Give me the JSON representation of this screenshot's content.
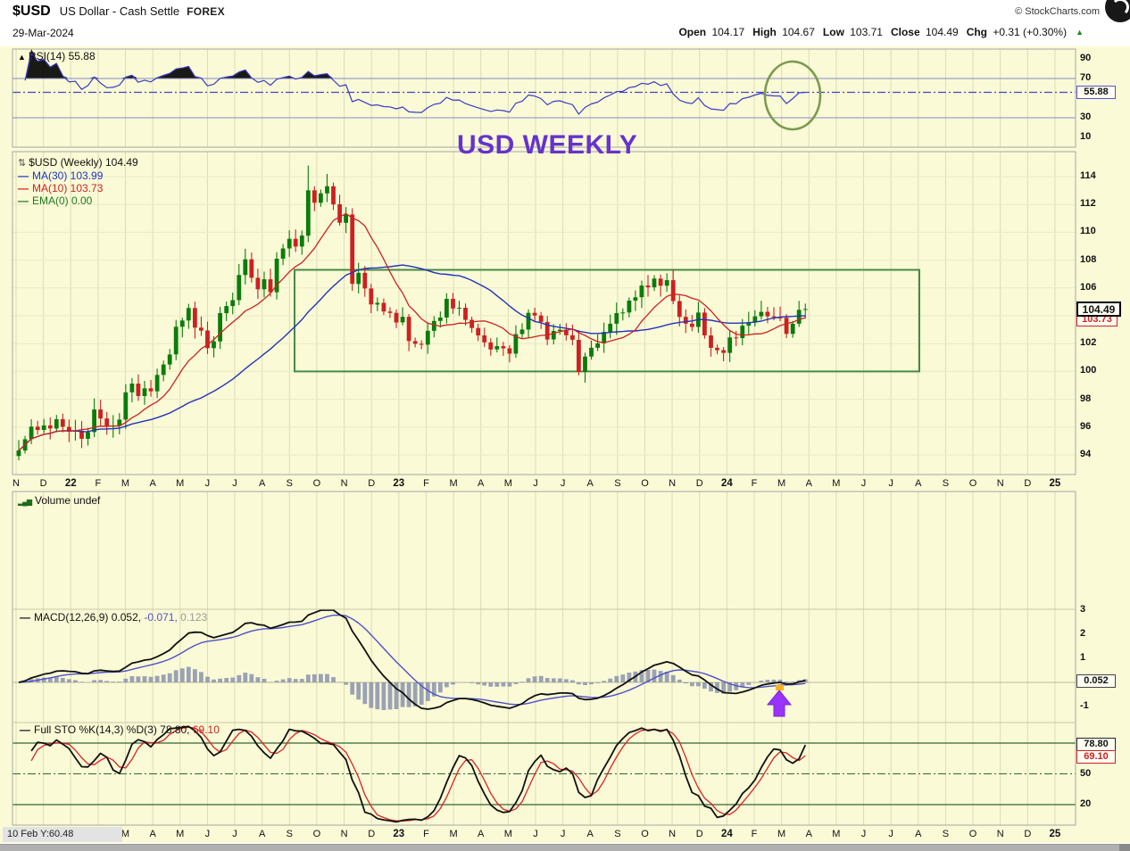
{
  "header": {
    "symbol": "$USD",
    "name": "US Dollar - Cash Settle",
    "exchange": "FOREX",
    "date": "29-Mar-2024",
    "copyright": "© StockCharts.com",
    "quote": [
      {
        "label": "Open",
        "value": "104.17"
      },
      {
        "label": "High",
        "value": "104.67"
      },
      {
        "label": "Low",
        "value": "103.71"
      },
      {
        "label": "Close",
        "value": "104.49"
      },
      {
        "label": "Chg",
        "value": "+0.31 (+0.30%)"
      }
    ],
    "chg_direction": "up"
  },
  "annotations": {
    "title": "USD WEEKLY",
    "bottom_left": "10 Feb Y:60.48"
  },
  "panels": {
    "rsi": {
      "legend": "RSI(14) 55.88",
      "value_box": "55.88",
      "scale": [
        90,
        70,
        30,
        10
      ]
    },
    "price": {
      "legend_main": "$USD (Weekly) 104.49",
      "legend_ma30": "MA(30) 103.99",
      "legend_ma10": "MA(10) 103.73",
      "legend_ema": "EMA(0) 0.00",
      "value_box": "104.49",
      "value_box_ma10": "103.73",
      "scale": [
        114,
        112,
        110,
        108,
        106,
        104,
        102,
        100,
        98,
        96,
        94
      ]
    },
    "volume": {
      "legend": "Volume undef"
    },
    "macd": {
      "legend_label": "MACD(12,26,9)",
      "v1": "0.052,",
      "v2": "-0.071,",
      "v3": "0.123",
      "value_box": "0.052",
      "scale": [
        3,
        2,
        1,
        -1
      ]
    },
    "sto": {
      "legend_label": "Full STO %K(14,3) %D(3)",
      "v1": "78.80,",
      "v2": "69.10",
      "box_k": "78.80",
      "box_d": "69.10",
      "scale": [
        50,
        20
      ]
    }
  },
  "axis": {
    "months": [
      "N",
      "D",
      "22",
      "F",
      "M",
      "A",
      "M",
      "J",
      "J",
      "A",
      "S",
      "O",
      "N",
      "D",
      "23",
      "F",
      "M",
      "A",
      "M",
      "J",
      "J",
      "A",
      "S",
      "O",
      "N",
      "D",
      "24",
      "F",
      "M",
      "A",
      "M",
      "J",
      "J",
      "A",
      "S",
      "O",
      "N",
      "D",
      "25"
    ],
    "bold": [
      "22",
      "23",
      "24",
      "25"
    ]
  },
  "chart_data": {
    "type": "candlestick",
    "timeframe": "weekly",
    "symbol": "$USD",
    "x_range": [
      "Nov-2021",
      "Jan-2025"
    ],
    "last_bar": {
      "open": 104.17,
      "high": 104.67,
      "low": 103.71,
      "close": 104.49,
      "chg": 0.31,
      "chg_pct": 0.3
    },
    "price": {
      "ylim": [
        93,
        115.5
      ],
      "closes": [
        94.32,
        95.13,
        96.03,
        95.79,
        96.12,
        95.9,
        96.57,
        96.02,
        95.67,
        95.74,
        95.16,
        95.64,
        97.27,
        96.62,
        96.03,
        96.1,
        96.54,
        98.5,
        99.13,
        98.23,
        98.79,
        98.57,
        99.75,
        100.5,
        101.22,
        103.21,
        103.66,
        104.56,
        103.15,
        102.94,
        101.67,
        102.16,
        104.19,
        104.7,
        105.12,
        106.93,
        108.06,
        106.73,
        105.9,
        106.62,
        105.69,
        108.1,
        108.84,
        109.53,
        108.97,
        109.76,
        113.02,
        112.12,
        112.8,
        113.31,
        112.01,
        110.68,
        111.28,
        106.29,
        107.09,
        105.96,
        104.81,
        104.93,
        104.31,
        104.21,
        103.52,
        103.92,
        102.18,
        101.99,
        101.92,
        102.92,
        103.63,
        103.88,
        105.22,
        104.53,
        104.58,
        103.71,
        103.12,
        102.59,
        102.09,
        101.58,
        101.82,
        101.66,
        101.28,
        102.68,
        103.01,
        104.21,
        104.02,
        103.56,
        102.3,
        102.91,
        103.0,
        102.6,
        102.27,
        99.96,
        101.07,
        101.7,
        102.02,
        102.84,
        103.43,
        104.19,
        104.24,
        105.09,
        105.33,
        106.17,
        106.04,
        106.67,
        106.16,
        106.56,
        105.06,
        103.92,
        103.43,
        103.2,
        104.23,
        102.59,
        101.7,
        101.53,
        101.33,
        102.44,
        102.4,
        103.29,
        103.54,
        103.96,
        104.28,
        103.96,
        103.88,
        103.86,
        102.7,
        103.43,
        104.43,
        104.49
      ]
    },
    "overlays": [
      {
        "name": "MA(30)",
        "last": 103.99,
        "color": "#2233BB"
      },
      {
        "name": "MA(10)",
        "last": 103.73,
        "color": "#CC2222"
      },
      {
        "name": "EMA(0)",
        "last": 0.0,
        "color": "#1E7A1E"
      }
    ],
    "indicators": {
      "rsi": {
        "period": 14,
        "last": 55.88,
        "ylim": [
          0,
          100
        ],
        "overbought": 70,
        "oversold": 30,
        "series_derived_from_closes": true
      },
      "macd": {
        "params": [
          12,
          26,
          9
        ],
        "last_macd": 0.052,
        "last_signal": -0.071,
        "last_hist": 0.123,
        "series_derived_from_closes": true
      },
      "full_sto": {
        "params": "%K(14,3) %D(3)",
        "last_k": 78.8,
        "last_d": 69.1,
        "upper": 80,
        "mid": 50,
        "lower": 20,
        "series_derived_from_closes": true
      },
      "volume": {
        "status": "undef"
      }
    },
    "chart_annotations": {
      "price_box": {
        "price_low": 100.0,
        "price_high": 107.3,
        "x_from": "Sep-2022",
        "x_to": "May-2024",
        "color": "#478A47"
      },
      "rsi_circle_x": "Mar-2024",
      "purple_arrow_x": "Mar-2024"
    }
  }
}
